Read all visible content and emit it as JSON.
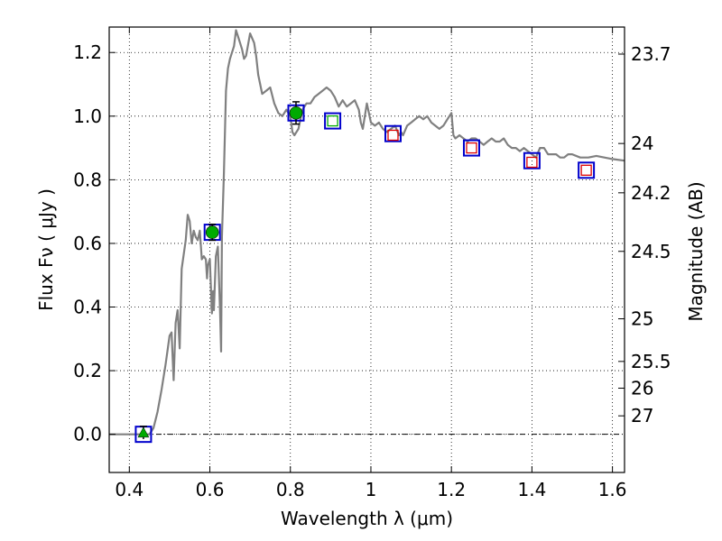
{
  "chart_data": {
    "type": "line",
    "xlabel": "Wavelength  λ (μm)",
    "ylabel": "Flux  Fν  ( μJy )",
    "ylabel_right": "Magnitude (AB)",
    "xlim": [
      0.35,
      1.63
    ],
    "ylim": [
      -0.12,
      1.28
    ],
    "grid": true,
    "x_ticks": [
      0.4,
      0.6,
      0.8,
      1.0,
      1.2,
      1.4,
      1.6
    ],
    "x_tick_labels": [
      "0.4",
      "0.6",
      "0.8",
      "1",
      "1.2",
      "1.4",
      "1.6"
    ],
    "y_ticks": [
      0.0,
      0.2,
      0.4,
      0.6,
      0.8,
      1.0,
      1.2
    ],
    "y_tick_labels": [
      "0.0",
      "0.2",
      "0.4",
      "0.6",
      "0.8",
      "1.0",
      "1.2"
    ],
    "right_ticks": [
      {
        "label": "23.7",
        "flux": 1.195
      },
      {
        "label": "24",
        "flux": 0.914
      },
      {
        "label": "24.2",
        "flux": 0.759
      },
      {
        "label": "24.5",
        "flux": 0.575
      },
      {
        "label": "25",
        "flux": 0.363
      },
      {
        "label": "25.5",
        "flux": 0.229
      },
      {
        "label": "26",
        "flux": 0.145
      },
      {
        "label": "27",
        "flux": 0.058
      }
    ],
    "zero_line": 0.0,
    "series": [
      {
        "kind": "model-spectrum",
        "color": "#808080",
        "x": [
          0.35,
          0.45,
          0.46,
          0.47,
          0.48,
          0.49,
          0.5,
          0.505,
          0.51,
          0.515,
          0.52,
          0.525,
          0.53,
          0.54,
          0.545,
          0.55,
          0.555,
          0.56,
          0.565,
          0.57,
          0.575,
          0.58,
          0.585,
          0.59,
          0.593,
          0.595,
          0.6,
          0.605,
          0.608,
          0.61,
          0.615,
          0.62,
          0.625,
          0.628,
          0.63,
          0.635,
          0.64,
          0.645,
          0.65,
          0.66,
          0.665,
          0.67,
          0.675,
          0.68,
          0.685,
          0.69,
          0.7,
          0.71,
          0.715,
          0.72,
          0.73,
          0.74,
          0.75,
          0.76,
          0.77,
          0.78,
          0.79,
          0.8,
          0.805,
          0.81,
          0.82,
          0.83,
          0.84,
          0.85,
          0.86,
          0.87,
          0.88,
          0.89,
          0.9,
          0.91,
          0.92,
          0.93,
          0.94,
          0.95,
          0.96,
          0.97,
          0.975,
          0.98,
          0.99,
          1.0,
          1.01,
          1.02,
          1.03,
          1.04,
          1.05,
          1.06,
          1.07,
          1.075,
          1.08,
          1.09,
          1.1,
          1.11,
          1.12,
          1.13,
          1.14,
          1.15,
          1.16,
          1.17,
          1.18,
          1.19,
          1.2,
          1.205,
          1.21,
          1.22,
          1.23,
          1.24,
          1.25,
          1.26,
          1.27,
          1.28,
          1.29,
          1.3,
          1.31,
          1.32,
          1.33,
          1.34,
          1.35,
          1.36,
          1.37,
          1.38,
          1.39,
          1.4,
          1.41,
          1.42,
          1.43,
          1.44,
          1.45,
          1.46,
          1.47,
          1.48,
          1.49,
          1.5,
          1.52,
          1.54,
          1.56,
          1.58,
          1.6,
          1.63
        ],
        "values": [
          0.0,
          0.0,
          0.02,
          0.07,
          0.14,
          0.22,
          0.31,
          0.32,
          0.17,
          0.35,
          0.39,
          0.27,
          0.52,
          0.61,
          0.69,
          0.67,
          0.6,
          0.64,
          0.62,
          0.61,
          0.64,
          0.55,
          0.56,
          0.55,
          0.49,
          0.53,
          0.55,
          0.38,
          0.45,
          0.39,
          0.56,
          0.59,
          0.4,
          0.26,
          0.62,
          0.82,
          1.08,
          1.15,
          1.18,
          1.22,
          1.27,
          1.25,
          1.23,
          1.21,
          1.18,
          1.19,
          1.26,
          1.23,
          1.19,
          1.13,
          1.07,
          1.08,
          1.09,
          1.04,
          1.01,
          1.0,
          1.02,
          1.0,
          0.95,
          0.94,
          0.96,
          1.02,
          1.04,
          1.04,
          1.06,
          1.07,
          1.08,
          1.09,
          1.08,
          1.06,
          1.03,
          1.05,
          1.03,
          1.04,
          1.05,
          1.02,
          0.98,
          0.96,
          1.04,
          0.98,
          0.97,
          0.98,
          0.96,
          0.95,
          0.96,
          0.97,
          0.94,
          0.95,
          0.94,
          0.97,
          0.98,
          0.99,
          1.0,
          0.99,
          1.0,
          0.98,
          0.97,
          0.96,
          0.97,
          0.99,
          1.01,
          0.94,
          0.93,
          0.94,
          0.93,
          0.92,
          0.93,
          0.93,
          0.92,
          0.91,
          0.92,
          0.93,
          0.92,
          0.92,
          0.93,
          0.91,
          0.9,
          0.9,
          0.89,
          0.9,
          0.89,
          0.88,
          0.87,
          0.9,
          0.9,
          0.88,
          0.88,
          0.88,
          0.87,
          0.87,
          0.88,
          0.88,
          0.87,
          0.87,
          0.875,
          0.87,
          0.865,
          0.86
        ]
      },
      {
        "kind": "observed-photometry",
        "marker": "blue-square",
        "color": "#0000cc",
        "x": [
          0.435,
          0.606,
          0.814,
          0.905,
          1.055,
          1.25,
          1.4,
          1.535
        ],
        "values": [
          0.0,
          0.635,
          1.01,
          0.985,
          0.945,
          0.9,
          0.86,
          0.83
        ]
      },
      {
        "kind": "filled-circle-detections",
        "marker": "green-circle",
        "color": "#00aa00",
        "x": [
          0.606,
          0.814
        ],
        "values": [
          0.635,
          1.01
        ],
        "errors": [
          0.025,
          0.035
        ]
      },
      {
        "kind": "triangle-point",
        "marker": "green-triangle",
        "color": "#00aa00",
        "x": [
          0.435
        ],
        "values": [
          0.005
        ],
        "errors": [
          0.02
        ]
      },
      {
        "kind": "model-photometry-green",
        "marker": "green-open-square",
        "color": "#00aa00",
        "x": [
          0.905
        ],
        "values": [
          0.985
        ]
      },
      {
        "kind": "model-photometry-red",
        "marker": "red-open-square",
        "color": "#dd0000",
        "x": [
          1.055,
          1.25,
          1.4,
          1.535
        ],
        "values": [
          0.94,
          0.9,
          0.855,
          0.83
        ]
      }
    ]
  }
}
